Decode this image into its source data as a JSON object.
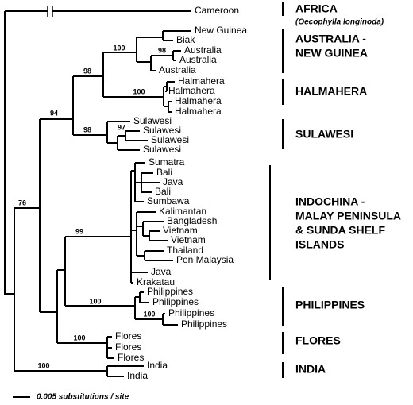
{
  "leaves": [
    "Cameroon",
    "New Guinea",
    "Biak",
    "Australia",
    "Australia",
    "Australia",
    "Halmahera",
    "Halmahera",
    "Halmahera",
    "Halmahera",
    "Sulawesi",
    "Sulawesi",
    "Sulawesi",
    "Sulawesi",
    "Sumatra",
    "Bali",
    "Java",
    "Bali",
    "Sumbawa",
    "Kalimantan",
    "Bangladesh",
    "Vietnam",
    "Vietnam",
    "Thailand",
    "Pen Malaysia",
    "Java",
    "Krakatau",
    "Philippines",
    "Philippines",
    "Philippines",
    "Philippines",
    "Flores",
    "Flores",
    "Flores",
    "India",
    "India"
  ],
  "bootstrap": [
    "100",
    "98",
    "98",
    "100",
    "94",
    "98",
    "97",
    "99",
    "100",
    "100",
    "76",
    "100",
    "100"
  ],
  "regions": [
    {
      "lines": [
        "AFRICA"
      ],
      "note": "(Oecophylla longinoda)"
    },
    {
      "lines": [
        "AUSTRALIA -",
        "NEW GUINEA"
      ]
    },
    {
      "lines": [
        "HALMAHERA"
      ]
    },
    {
      "lines": [
        "SULAWESI"
      ]
    },
    {
      "lines": [
        "INDOCHINA -",
        "MALAY PENINSULA",
        "& SUNDA SHELF",
        "ISLANDS"
      ]
    },
    {
      "lines": [
        "PHILIPPINES"
      ]
    },
    {
      "lines": [
        "FLORES"
      ]
    },
    {
      "lines": [
        "INDIA"
      ]
    }
  ],
  "scale": "0.005 substitutions / site"
}
